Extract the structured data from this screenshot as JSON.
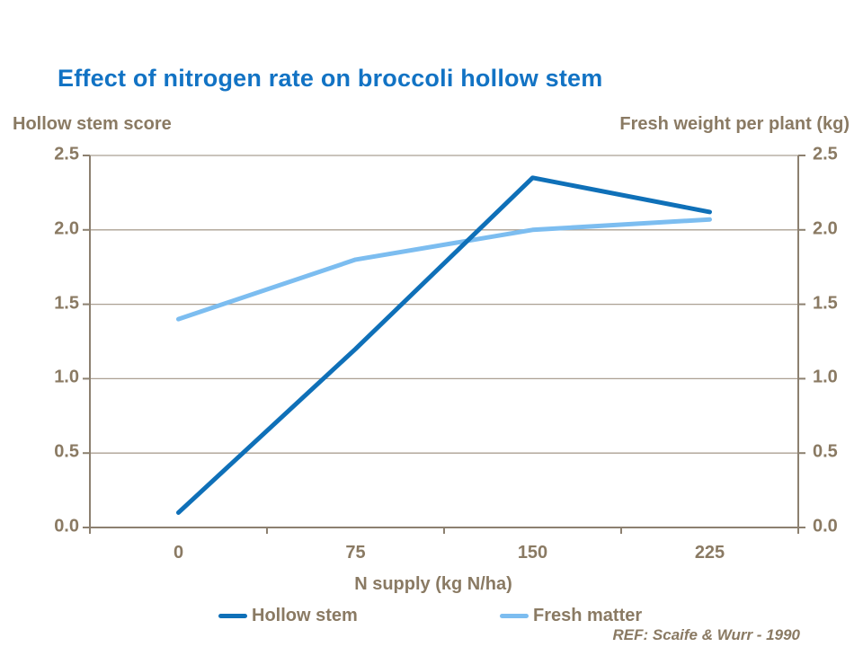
{
  "slide": {
    "ref_note": "REF: Scaife & Wurr - 1990"
  },
  "chart_data": {
    "type": "line",
    "title": "Effect of nitrogen rate on broccoli hollow stem",
    "categories": [
      0,
      75,
      150,
      225
    ],
    "x_tick_labels": [
      "0",
      "75",
      "150",
      "225"
    ],
    "xlabel": "N supply (kg N/ha)",
    "left_axis_title": "Hollow stem score",
    "right_axis_title": "Fresh weight per plant (kg)",
    "y_tick_labels": [
      "0.0",
      "0.5",
      "1.0",
      "1.5",
      "2.0",
      "2.5"
    ],
    "y_tick_values": [
      0,
      0.5,
      1,
      1.5,
      2,
      2.5
    ],
    "ylim": [
      0,
      2.5
    ],
    "grid": true,
    "legend_position": "bottom",
    "series": [
      {
        "name": "Hollow stem",
        "axis": "left",
        "color": "#0F70B8",
        "values": [
          0.1,
          1.2,
          2.35,
          2.12
        ]
      },
      {
        "name": "Fresh matter",
        "axis": "right",
        "color": "#7CBDF0",
        "values": [
          1.4,
          1.8,
          2.0,
          2.07
        ]
      }
    ]
  },
  "colors": {
    "title": "#1273C4",
    "axis_text": "#8A7A63",
    "axis_line": "#8C8070",
    "gridline": "#ABA093",
    "background": "#FFFFFF"
  }
}
